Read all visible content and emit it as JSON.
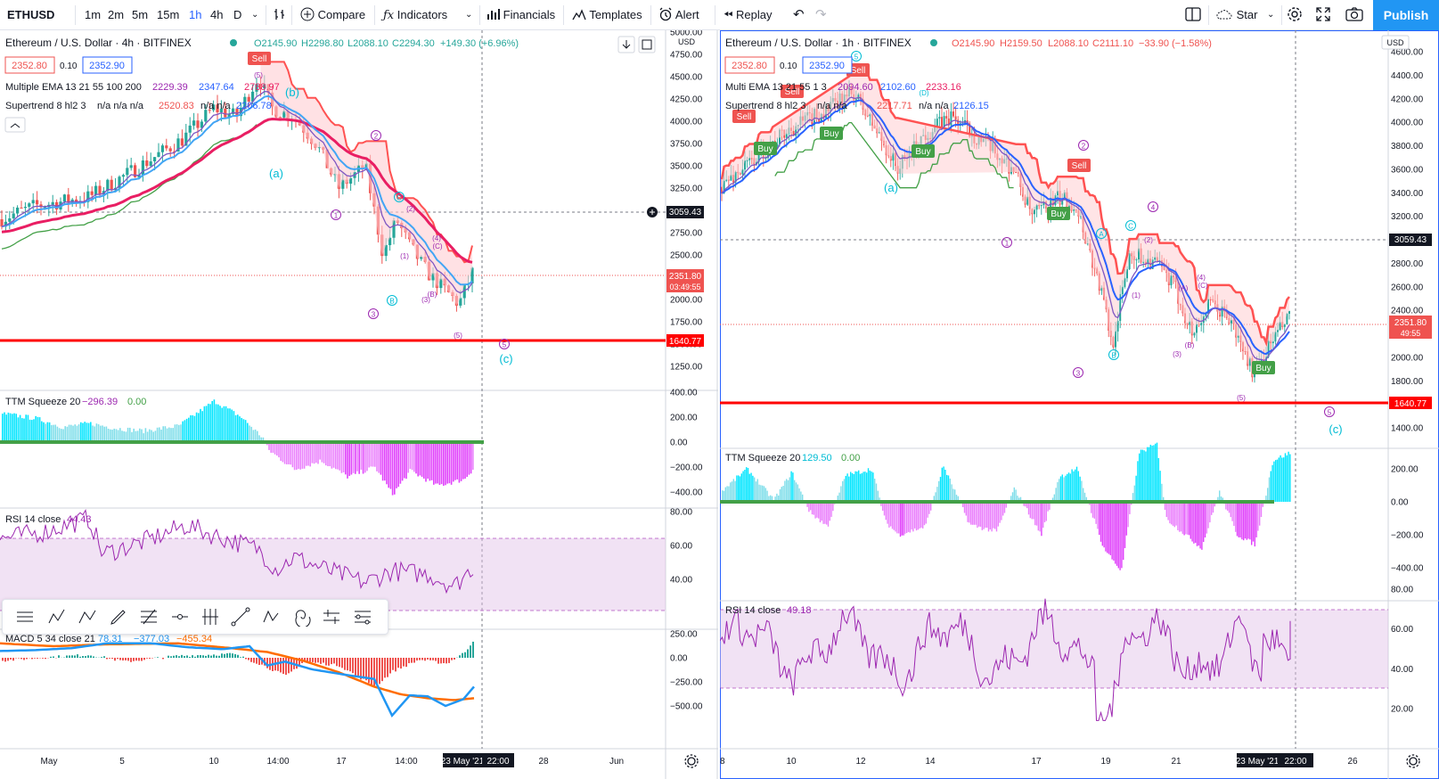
{
  "toolbar": {
    "symbol": "ETHUSD",
    "intervals": [
      "1m",
      "2m",
      "5m",
      "15m",
      "1h",
      "4h",
      "D"
    ],
    "active_interval": "1h",
    "compare": "Compare",
    "indicators": "Indicators",
    "financials": "Financials",
    "templates": "Templates",
    "alert": "Alert",
    "replay": "Replay",
    "layout_name": "Star",
    "publish": "Publish"
  },
  "left": {
    "legend": {
      "title": "Ethereum / U.S. Dollar · 4h · BITFINEX",
      "o": "O2145.90",
      "h": "H2298.80",
      "l": "L2088.10",
      "c": "C2294.30",
      "change": "+149.30 (+6.96%)",
      "bid": "2352.80",
      "spread": "0.10",
      "ask": "2352.90",
      "ema_name": "Multiple EMA 13 21 55 100 200",
      "ema_vals": [
        "2229.39",
        "2347.64",
        "2788.97"
      ],
      "st_name": "Supertrend 8 hl2 3",
      "st_vals": "n/a n/a n/a",
      "st_val1": "2520.83",
      "st_vals2": "n/a n/a",
      "st_val2": "2206.78"
    },
    "price_axis": {
      "unit": "USD",
      "ticks": [
        "5000.00",
        "4750.00",
        "4500.00",
        "4250.00",
        "4000.00",
        "3750.00",
        "3500.00",
        "3250.00",
        "3000.00",
        "2750.00",
        "2500.00",
        "2250.00",
        "2000.00",
        "1750.00",
        "1500.00",
        "1250.00"
      ],
      "crosshair": "3059.43",
      "last": "2351.80",
      "countdown": "03:49:55",
      "support": "1640.77"
    },
    "annotations": {
      "sell": "Sell",
      "b": "(b)",
      "a": "(a)",
      "c": "(c)",
      "w1": "1",
      "w2": "2",
      "w3": "3",
      "w5": "5",
      "cap_a": "A",
      "cap_b": "B",
      "cap_c": "C",
      "p1": "(1)",
      "p2": "(2)",
      "p3": "(3)",
      "p4": "(4)",
      "p5": "(5)",
      "pb": "(B)",
      "pa": "(A)",
      "pc": "(C)"
    },
    "ttm": {
      "name": "TTM Squeeze 20",
      "v1": "−296.39",
      "v2": "0.00",
      "ticks": [
        "400.00",
        "200.00",
        "0.00",
        "−200.00",
        "−400.00"
      ]
    },
    "rsi": {
      "name": "RSI 14 close",
      "v1": "44.43",
      "ticks": [
        "80.00",
        "60.00",
        "40.00"
      ]
    },
    "macd": {
      "name": "MACD 5 34 close 21",
      "v1": "78.31",
      "v2": "−377.03",
      "v3": "−455.34",
      "ticks": [
        "250.00",
        "0.00",
        "−250.00",
        "−500.00"
      ]
    },
    "time_axis": [
      "May",
      "5",
      "10",
      "14:00",
      "17",
      "14:00",
      "28",
      "Jun"
    ],
    "crosshair_time": "23 May '21",
    "crosshair_hour": "22:00"
  },
  "right": {
    "legend": {
      "title": "Ethereum / U.S. Dollar · 1h · BITFINEX",
      "o": "O2145.90",
      "h": "H2159.50",
      "l": "L2088.10",
      "c": "C2111.10",
      "change": "−33.90 (−1.58%)",
      "bid": "2352.80",
      "spread": "0.10",
      "ask": "2352.90",
      "ema_name": "Multi EMA 13 21 55 1 3",
      "ema_vals": [
        "2094.60",
        "2102.60",
        "2233.16"
      ],
      "st_name": "Supertrend 8 hl2 3",
      "st_vals": "n/a n/a",
      "st_val1": "2217.71",
      "st_vals2": "n/a n/a",
      "st_val2": "2126.15"
    },
    "price_axis": {
      "unit": "USD",
      "ticks": [
        "4600.00",
        "4400.00",
        "4200.00",
        "4000.00",
        "3800.00",
        "3600.00",
        "3400.00",
        "3200.00",
        "3000.00",
        "2800.00",
        "2600.00",
        "2400.00",
        "2200.00",
        "2000.00",
        "1800.00",
        "1600.00",
        "1400.00"
      ],
      "crosshair": "3059.43",
      "last": "2351.80",
      "countdown": "49:55",
      "support": "1640.77"
    },
    "annotations": {
      "sell": "Sell",
      "buy": "Buy",
      "a": "(a)",
      "c": "(c)",
      "w1": "1",
      "w2": "2",
      "w3": "3",
      "w4": "4",
      "w5": "5",
      "cap_a": "A",
      "cap_b": "B",
      "cap_c": "C",
      "p1": "(1)",
      "p2": "(2)",
      "p3": "(3)",
      "p4": "(4)",
      "p5": "(5)",
      "pb": "(B)",
      "pa": "(A)",
      "pc": "(C)",
      "pd": "(D)"
    },
    "ttm": {
      "name": "TTM Squeeze 20",
      "v1": "129.50",
      "v2": "0.00",
      "ticks": [
        "200.00",
        "0.00",
        "−200.00",
        "−400.00"
      ]
    },
    "rsi": {
      "name": "RSI 14 close",
      "v1": "49.18",
      "ticks": [
        "80.00",
        "60.00",
        "40.00",
        "20.00"
      ]
    },
    "time_axis": [
      "8",
      "10",
      "12",
      "14",
      "17",
      "19",
      "21",
      "26"
    ],
    "crosshair_time": "23 May '21",
    "crosshair_hour": "22:00"
  },
  "colors": {
    "up": "#26a69a",
    "down": "#ef5350",
    "ema_fast": "#7e57c2",
    "ema_mid": "#42a5f5",
    "ema_slow": "#e91e63",
    "st_red": "#ff5252",
    "support": "#ff0000",
    "rsi": "#9c27b0",
    "wave_purple": "#9c27b0",
    "wave_cyan": "#00bcd4",
    "accent": "#2962ff"
  },
  "chart_data": [
    {
      "type": "line",
      "title": "Ethereum / U.S. Dollar · 4h · BITFINEX",
      "x": [
        "May",
        "5",
        "10",
        "14:00",
        "17",
        "14:00",
        "23 May '21 22:00"
      ],
      "series": [
        {
          "values": [
            2750,
            3300,
            4050,
            4150,
            3300,
            2200,
            2350
          ]
        }
      ],
      "ylim": [
        1250,
        5000
      ],
      "ylabel": "USD"
    },
    {
      "type": "line",
      "title": "Ethereum / U.S. Dollar · 1h · BITFINEX",
      "x": [
        "8",
        "10",
        "12",
        "14",
        "17",
        "19",
        "21",
        "23 May '21 22:00"
      ],
      "series": [
        {
          "values": [
            3450,
            3900,
            4150,
            3950,
            3650,
            2300,
            2500,
            2350
          ]
        }
      ],
      "ylim": [
        1400,
        4600
      ],
      "ylabel": "USD"
    }
  ]
}
